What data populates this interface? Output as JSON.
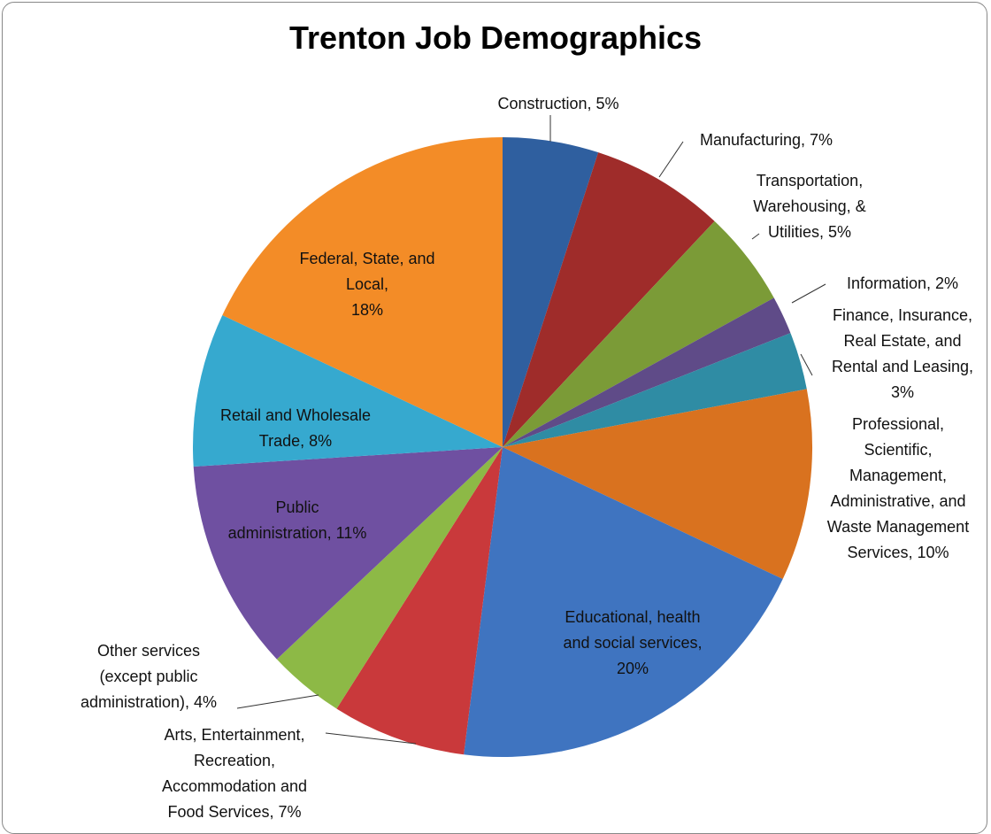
{
  "chart_data": {
    "type": "pie",
    "title": "Trenton Job Demographics",
    "categories": [
      "Construction",
      "Manufacturing",
      "Transportation, Warehousing, & Utilities",
      "Information",
      "Finance, Insurance, Real Estate, and Rental and Leasing",
      "Professional, Scientific, Management, Administrative, and Waste Management Services",
      "Educational, health and social services",
      "Arts, Entertainment, Recreation, Accommodation and Food Services",
      "Other services (except public administration)",
      "Public administration",
      "Retail and Wholesale Trade",
      "Federal, State, and Local"
    ],
    "values": [
      5,
      7,
      5,
      2,
      3,
      10,
      20,
      7,
      4,
      11,
      8,
      18
    ],
    "value_labels": [
      "Construction, 5%",
      "Manufacturing, 7%",
      "Transportation,\nWarehousing, &\nUtilities, 5%",
      "Information, 2%",
      "Finance, Insurance,\nReal Estate, and\nRental and Leasing,\n3%",
      "Professional,\nScientific,\nManagement,\nAdministrative, and\nWaste Management\nServices, 10%",
      "Educational, health\nand social services,\n20%",
      "Arts, Entertainment,\nRecreation,\nAccommodation and\nFood Services, 7%",
      "Other services\n(except public\nadministration), 4%",
      "Public\nadministration, 11%",
      "Retail and Wholesale\nTrade, 8%",
      "Federal, State, and\nLocal,\n18%"
    ],
    "colors": [
      "#2f5f9f",
      "#9f2c2a",
      "#7b9b37",
      "#5f4b88",
      "#2f8ca4",
      "#d9721f",
      "#3f74c0",
      "#c9393b",
      "#8db946",
      "#6f50a1",
      "#36a9cf",
      "#f38c27"
    ]
  }
}
